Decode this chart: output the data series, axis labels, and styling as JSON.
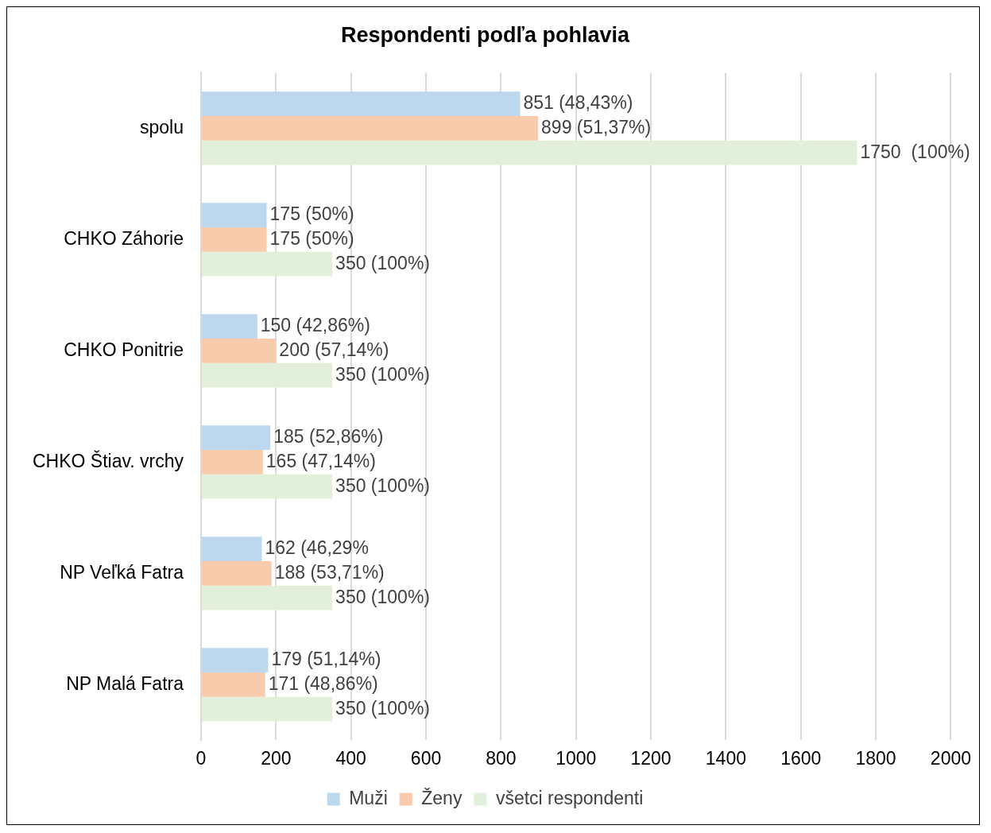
{
  "chart_data": {
    "type": "bar",
    "orientation": "horizontal",
    "title": "Respondenti podľa pohlavia",
    "categories": [
      "spolu",
      "CHKO Záhorie",
      "CHKO Ponitrie",
      "CHKO Štiav. vrchy",
      "NP Veľká Fatra",
      "NP Malá Fatra"
    ],
    "series": [
      {
        "name": "Muži",
        "color": "#bdd7ee",
        "values": [
          851,
          175,
          150,
          185,
          162,
          179
        ],
        "value_labels": [
          "851 (48,43%)",
          "175 (50%)",
          "150 (42,86%)",
          "185 (52,86%)",
          "162 (46,29%",
          "179 (51,14%)"
        ]
      },
      {
        "name": "Ženy",
        "color": "#f8cbad",
        "values": [
          899,
          175,
          200,
          165,
          188,
          171
        ],
        "value_labels": [
          "899 (51,37%)",
          "175 (50%)",
          "200 (57,14%)",
          "165 (47,14%)",
          "188 (53,71%)",
          "171 (48,86%)"
        ]
      },
      {
        "name": "všetci respondenti",
        "color": "#e2efda",
        "values": [
          1750,
          350,
          350,
          350,
          350,
          350
        ],
        "value_labels": [
          "1750  (100%)",
          "350 (100%)",
          "350 (100%)",
          "350 (100%)",
          "350 (100%)",
          "350 (100%)"
        ]
      }
    ],
    "xlim": [
      0,
      2000
    ],
    "xticks": [
      0,
      200,
      400,
      600,
      800,
      1000,
      1200,
      1400,
      1600,
      1800,
      2000
    ],
    "grid": "x",
    "legend": "bottom"
  }
}
